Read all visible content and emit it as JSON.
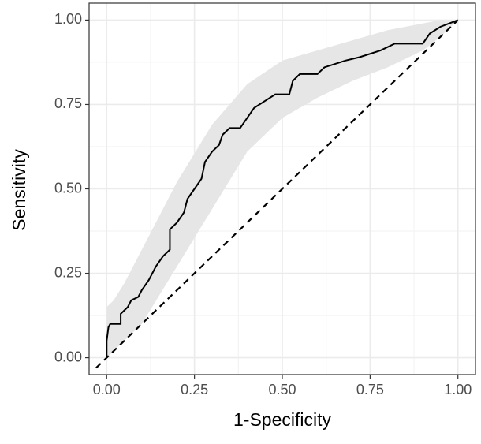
{
  "chart_data": {
    "type": "roc",
    "x_label": "1-Specificity",
    "y_label": "Sensitivity",
    "xlim": [
      -0.05,
      1.05
    ],
    "ylim": [
      -0.05,
      1.05
    ],
    "xticks": [
      {
        "value": 0,
        "label": "0.00"
      },
      {
        "value": 0.25,
        "label": "0.25"
      },
      {
        "value": 0.5,
        "label": "0.50"
      },
      {
        "value": 0.75,
        "label": "0.75"
      },
      {
        "value": 1,
        "label": "1.00"
      }
    ],
    "yticks": [
      {
        "value": 0,
        "label": "0.00"
      },
      {
        "value": 0.25,
        "label": "0.25"
      },
      {
        "value": 0.5,
        "label": "0.50"
      },
      {
        "value": 0.75,
        "label": "0.75"
      },
      {
        "value": 1,
        "label": "1.00"
      }
    ],
    "grid": true,
    "band": {
      "color": "#e6e6e6",
      "x": [
        0,
        0.02,
        0.05,
        0.1,
        0.2,
        0.3,
        0.4,
        0.5,
        0.6,
        0.7,
        0.8,
        0.9,
        0.95,
        1
      ],
      "upper": [
        0.15,
        0.17,
        0.22,
        0.32,
        0.52,
        0.69,
        0.81,
        0.88,
        0.91,
        0.94,
        0.97,
        0.99,
        1.0,
        1.0
      ],
      "lower": [
        0.0,
        0.02,
        0.05,
        0.1,
        0.27,
        0.44,
        0.61,
        0.71,
        0.77,
        0.82,
        0.86,
        0.91,
        0.95,
        1.0
      ]
    },
    "curve": {
      "color": "#000000",
      "x": [
        0,
        0,
        0.005,
        0.01,
        0.04,
        0.04,
        0.06,
        0.07,
        0.09,
        0.1,
        0.12,
        0.14,
        0.16,
        0.18,
        0.18,
        0.2,
        0.22,
        0.23,
        0.25,
        0.27,
        0.28,
        0.3,
        0.32,
        0.33,
        0.35,
        0.38,
        0.4,
        0.42,
        0.45,
        0.48,
        0.52,
        0.53,
        0.55,
        0.6,
        0.62,
        0.68,
        0.72,
        0.78,
        0.82,
        0.9,
        0.92,
        0.95,
        1
      ],
      "y": [
        0,
        0.05,
        0.09,
        0.1,
        0.1,
        0.13,
        0.15,
        0.17,
        0.18,
        0.2,
        0.23,
        0.27,
        0.3,
        0.32,
        0.38,
        0.4,
        0.43,
        0.47,
        0.5,
        0.53,
        0.58,
        0.61,
        0.63,
        0.66,
        0.68,
        0.68,
        0.71,
        0.74,
        0.76,
        0.78,
        0.78,
        0.82,
        0.84,
        0.84,
        0.86,
        0.88,
        0.89,
        0.91,
        0.93,
        0.93,
        0.96,
        0.98,
        1
      ]
    },
    "reference": {
      "color": "#000000",
      "x": [
        -0.03,
        1
      ],
      "y": [
        -0.03,
        1
      ]
    }
  }
}
